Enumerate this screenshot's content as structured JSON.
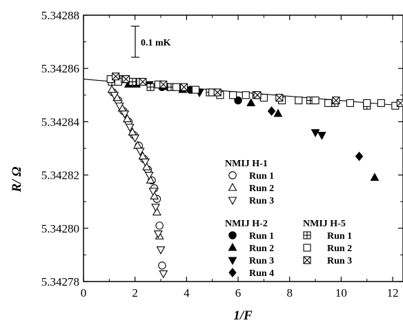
{
  "chart_data": {
    "type": "scatter",
    "xlabel": "1/F",
    "ylabel": "R/ Ω",
    "xlim": [
      0,
      12.4
    ],
    "ylim": [
      5.34278,
      5.34288
    ],
    "xticks": [
      0,
      2,
      4,
      6,
      8,
      10,
      12
    ],
    "yticks": [
      5.34278,
      5.3428,
      5.34282,
      5.34284,
      5.34286,
      5.34288
    ],
    "xtick_labels": [
      "0",
      "2",
      "4",
      "6",
      "8",
      "10",
      "12"
    ],
    "ytick_labels": [
      "5.34278",
      "5.34280",
      "5.34282",
      "5.34284",
      "5.34286",
      "5.34288"
    ],
    "annotation": "0.1 mK",
    "fit_line": {
      "x": [
        0,
        12.4
      ],
      "y": [
        5.342856,
        5.342846
      ]
    },
    "groups": [
      {
        "title": "NMIJ H-1",
        "series": [
          {
            "name": "Run 1",
            "marker": "open-circle",
            "x": [
              1.15,
              1.35,
              1.55,
              1.75,
              1.95,
              2.15,
              2.35,
              2.5,
              2.65,
              2.75,
              2.85,
              2.95,
              3.05
            ],
            "y": [
              5.342851,
              5.342848,
              5.342844,
              5.34284,
              5.342835,
              5.342831,
              5.342826,
              5.342822,
              5.342818,
              5.342815,
              5.342811,
              5.342801,
              5.342786
            ]
          },
          {
            "name": "Run 2",
            "marker": "open-triangle-up",
            "x": [
              1.1,
              1.3,
              1.5,
              1.7,
              1.9,
              2.1,
              2.3,
              2.45,
              2.6,
              2.75,
              2.85,
              2.95
            ],
            "y": [
              5.342852,
              5.342849,
              5.342845,
              5.342841,
              5.342836,
              5.342831,
              5.342827,
              5.342823,
              5.342818,
              5.342812,
              5.342806,
              5.342797
            ]
          },
          {
            "name": "Run 3",
            "marker": "open-triangle-down",
            "x": [
              1.2,
              1.4,
              1.6,
              1.8,
              2.0,
              2.2,
              2.4,
              2.55,
              2.7,
              2.8,
              2.9,
              3.0,
              3.1
            ],
            "y": [
              5.34285,
              5.342846,
              5.342843,
              5.342838,
              5.342834,
              5.342829,
              5.342825,
              5.34282,
              5.342814,
              5.342808,
              5.342798,
              5.342792,
              5.342783
            ]
          }
        ]
      },
      {
        "title": "NMIJ H-2",
        "series": [
          {
            "name": "Run 1",
            "marker": "filled-circle",
            "x": [
              3.05,
              3.3,
              4.15,
              6.0
            ],
            "y": [
              5.342853,
              5.342853,
              5.342852,
              5.342848
            ]
          },
          {
            "name": "Run 2",
            "marker": "filled-triangle-up",
            "x": [
              1.75,
              2.05,
              3.85,
              6.5,
              7.55,
              11.3
            ],
            "y": [
              5.342854,
              5.342854,
              5.342852,
              5.342847,
              5.342843,
              5.342819
            ]
          },
          {
            "name": "Run 3",
            "marker": "filled-triangle-down",
            "x": [
              2.55,
              4.5,
              9.0,
              9.25
            ],
            "y": [
              5.342854,
              5.342851,
              5.342836,
              5.342835
            ]
          },
          {
            "name": "Run 4",
            "marker": "filled-diamond",
            "x": [
              7.3,
              10.7
            ],
            "y": [
              5.342844,
              5.342827
            ]
          }
        ]
      },
      {
        "title": "NMIJ H-5",
        "series": [
          {
            "name": "Run 1",
            "marker": "boxed-plus",
            "x": [
              1.1,
              1.4,
              1.9,
              2.6,
              3.4,
              4.9,
              6.7,
              8.8,
              9.75,
              11.0
            ],
            "y": [
              5.342855,
              5.342856,
              5.342855,
              5.342853,
              5.342853,
              5.342851,
              5.34285,
              5.342848,
              5.342847,
              5.342846
            ]
          },
          {
            "name": "Run 2",
            "marker": "open-square",
            "x": [
              1.05,
              1.35,
              1.6,
              2.2,
              2.9,
              3.6,
              4.35,
              5.0,
              5.3,
              5.8,
              6.3,
              7.0,
              7.7,
              8.35,
              9.0,
              9.5,
              10.35,
              11.0,
              11.55,
              12.1
            ],
            "y": [
              5.342856,
              5.342855,
              5.342856,
              5.342855,
              5.342854,
              5.342853,
              5.342852,
              5.342851,
              5.34285,
              5.34285,
              5.34285,
              5.342849,
              5.342848,
              5.342848,
              5.342848,
              5.342847,
              5.342847,
              5.342847,
              5.342847,
              5.342846
            ]
          },
          {
            "name": "Run 3",
            "marker": "boxed-x",
            "x": [
              1.25,
              1.65,
              2.3,
              3.1,
              3.9,
              5.2,
              6.75,
              7.6,
              9.8,
              12.3
            ],
            "y": [
              5.342857,
              5.342856,
              5.342855,
              5.342854,
              5.342853,
              5.342851,
              5.34285,
              5.342849,
              5.342848,
              5.342847
            ]
          }
        ]
      }
    ]
  }
}
